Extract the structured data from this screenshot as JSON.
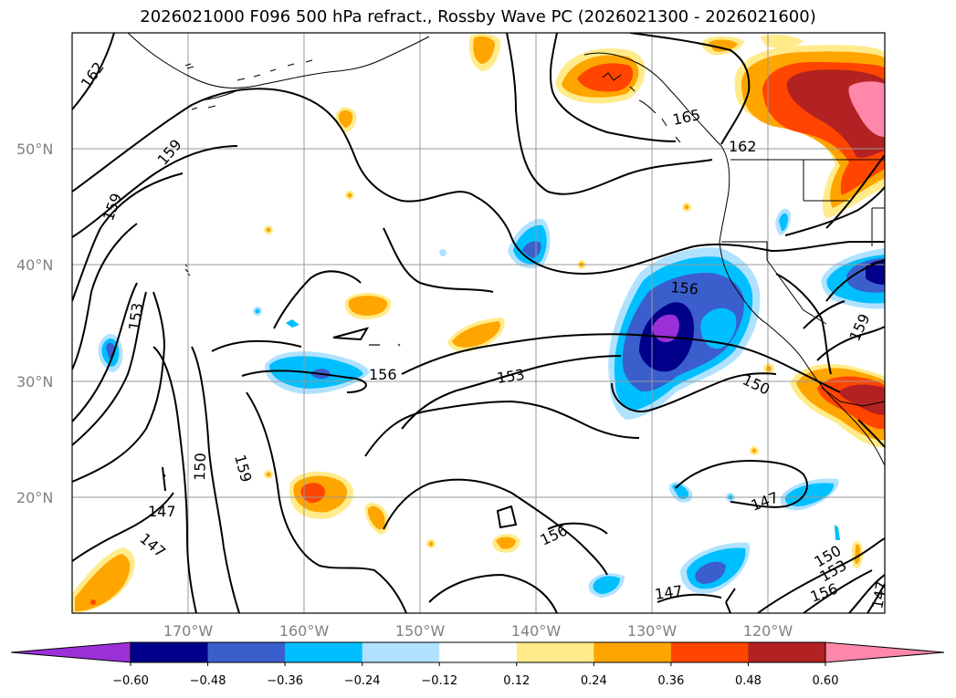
{
  "title": "2026021000 F096 500 hPa refract., Rossby Wave PC (2026021300 - 2026021600)",
  "map": {
    "lat_labels": [
      "50°N",
      "40°N",
      "30°N",
      "20°N"
    ],
    "lon_labels": [
      "170°W",
      "160°W",
      "150°W",
      "140°W",
      "130°W",
      "120°W"
    ],
    "contour_labels": [
      "162",
      "159",
      "159",
      "153",
      "150",
      "159",
      "147",
      "147",
      "156",
      "153",
      "156",
      "150",
      "165",
      "162",
      "156",
      "159",
      "147",
      "147",
      "150",
      "153",
      "156",
      "147"
    ]
  },
  "colorbar": {
    "tick_labels": [
      "−0.60",
      "−0.48",
      "−0.36",
      "−0.24",
      "−0.12",
      "0.12",
      "0.24",
      "0.36",
      "0.48",
      "0.60"
    ],
    "colors": [
      "#9b30d9",
      "#00008b",
      "#3a5fcd",
      "#00bfff",
      "#b0e2ff",
      "#ffffff",
      "#ffeb8a",
      "#ffa500",
      "#ff4500",
      "#b22222",
      "#ff88aa"
    ]
  }
}
